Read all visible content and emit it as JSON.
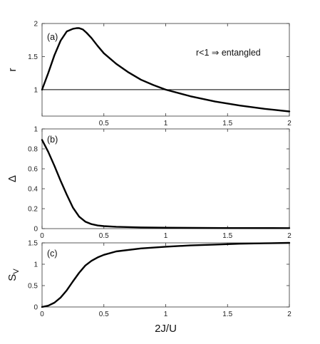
{
  "chart_data": [
    {
      "id": "a",
      "type": "line",
      "panel_label": "(a)",
      "ylabel": "r",
      "xlabel": "",
      "xlim": [
        0,
        2
      ],
      "ylim": [
        0.6,
        2
      ],
      "xticks": [
        0,
        0.5,
        1,
        1.5,
        2
      ],
      "xtick_labels": [
        "",
        "0.5",
        "1",
        "1.5",
        "2"
      ],
      "yticks": [
        1,
        1.5,
        2
      ],
      "ytick_labels": [
        "1",
        "1.5",
        "2"
      ],
      "grid": false,
      "annotation": "r<1  ⇒ entangled",
      "reference_line": {
        "y": 1
      },
      "series": [
        {
          "color": "#000000",
          "x": [
            0,
            0.05,
            0.1,
            0.15,
            0.2,
            0.25,
            0.28,
            0.3,
            0.33,
            0.36,
            0.4,
            0.45,
            0.5,
            0.6,
            0.7,
            0.8,
            0.9,
            1.0,
            1.2,
            1.4,
            1.6,
            1.8,
            2.0
          ],
          "y": [
            1.0,
            1.25,
            1.52,
            1.74,
            1.88,
            1.92,
            1.93,
            1.93,
            1.91,
            1.86,
            1.78,
            1.66,
            1.55,
            1.39,
            1.26,
            1.15,
            1.07,
            1.0,
            0.9,
            0.82,
            0.76,
            0.71,
            0.67
          ]
        }
      ]
    },
    {
      "id": "b",
      "type": "line",
      "panel_label": "(b)",
      "ylabel": "Δ",
      "xlabel": "",
      "xlim": [
        0,
        2
      ],
      "ylim": [
        0,
        1
      ],
      "xticks": [
        0,
        0.5,
        1,
        1.5,
        2
      ],
      "xtick_labels": [
        "0",
        "0.5",
        "1",
        "1.5",
        "2"
      ],
      "yticks": [
        0,
        0.2,
        0.4,
        0.6,
        0.8,
        1
      ],
      "ytick_labels": [
        "0",
        "0.2",
        "0.4",
        "0.6",
        "0.8",
        "1"
      ],
      "grid": false,
      "series": [
        {
          "color": "#000000",
          "x": [
            0,
            0.05,
            0.1,
            0.15,
            0.2,
            0.25,
            0.3,
            0.35,
            0.4,
            0.45,
            0.5,
            0.6,
            0.8,
            1.0,
            1.5,
            2.0
          ],
          "y": [
            0.89,
            0.77,
            0.63,
            0.48,
            0.34,
            0.21,
            0.12,
            0.07,
            0.045,
            0.032,
            0.025,
            0.018,
            0.012,
            0.009,
            0.006,
            0.005
          ]
        }
      ]
    },
    {
      "id": "c",
      "type": "line",
      "panel_label": "(c)",
      "ylabel": "S",
      "ylabel_subscript": "V",
      "xlabel": "2J/U",
      "xlim": [
        0,
        2
      ],
      "ylim": [
        0,
        1.5
      ],
      "xticks": [
        0,
        0.5,
        1,
        1.5,
        2
      ],
      "xtick_labels": [
        "0",
        "0.5",
        "1",
        "1.5",
        "2"
      ],
      "yticks": [
        0,
        0.5,
        1,
        1.5
      ],
      "ytick_labels": [
        "0",
        "0.5",
        "1",
        "1.5"
      ],
      "grid": false,
      "series": [
        {
          "color": "#000000",
          "x": [
            0,
            0.05,
            0.1,
            0.15,
            0.2,
            0.25,
            0.3,
            0.35,
            0.4,
            0.45,
            0.5,
            0.6,
            0.8,
            1.0,
            1.2,
            1.4,
            1.6,
            1.8,
            2.0
          ],
          "y": [
            0.0,
            0.03,
            0.1,
            0.22,
            0.39,
            0.6,
            0.8,
            0.97,
            1.08,
            1.16,
            1.22,
            1.3,
            1.37,
            1.41,
            1.44,
            1.46,
            1.48,
            1.49,
            1.5
          ]
        }
      ]
    }
  ]
}
